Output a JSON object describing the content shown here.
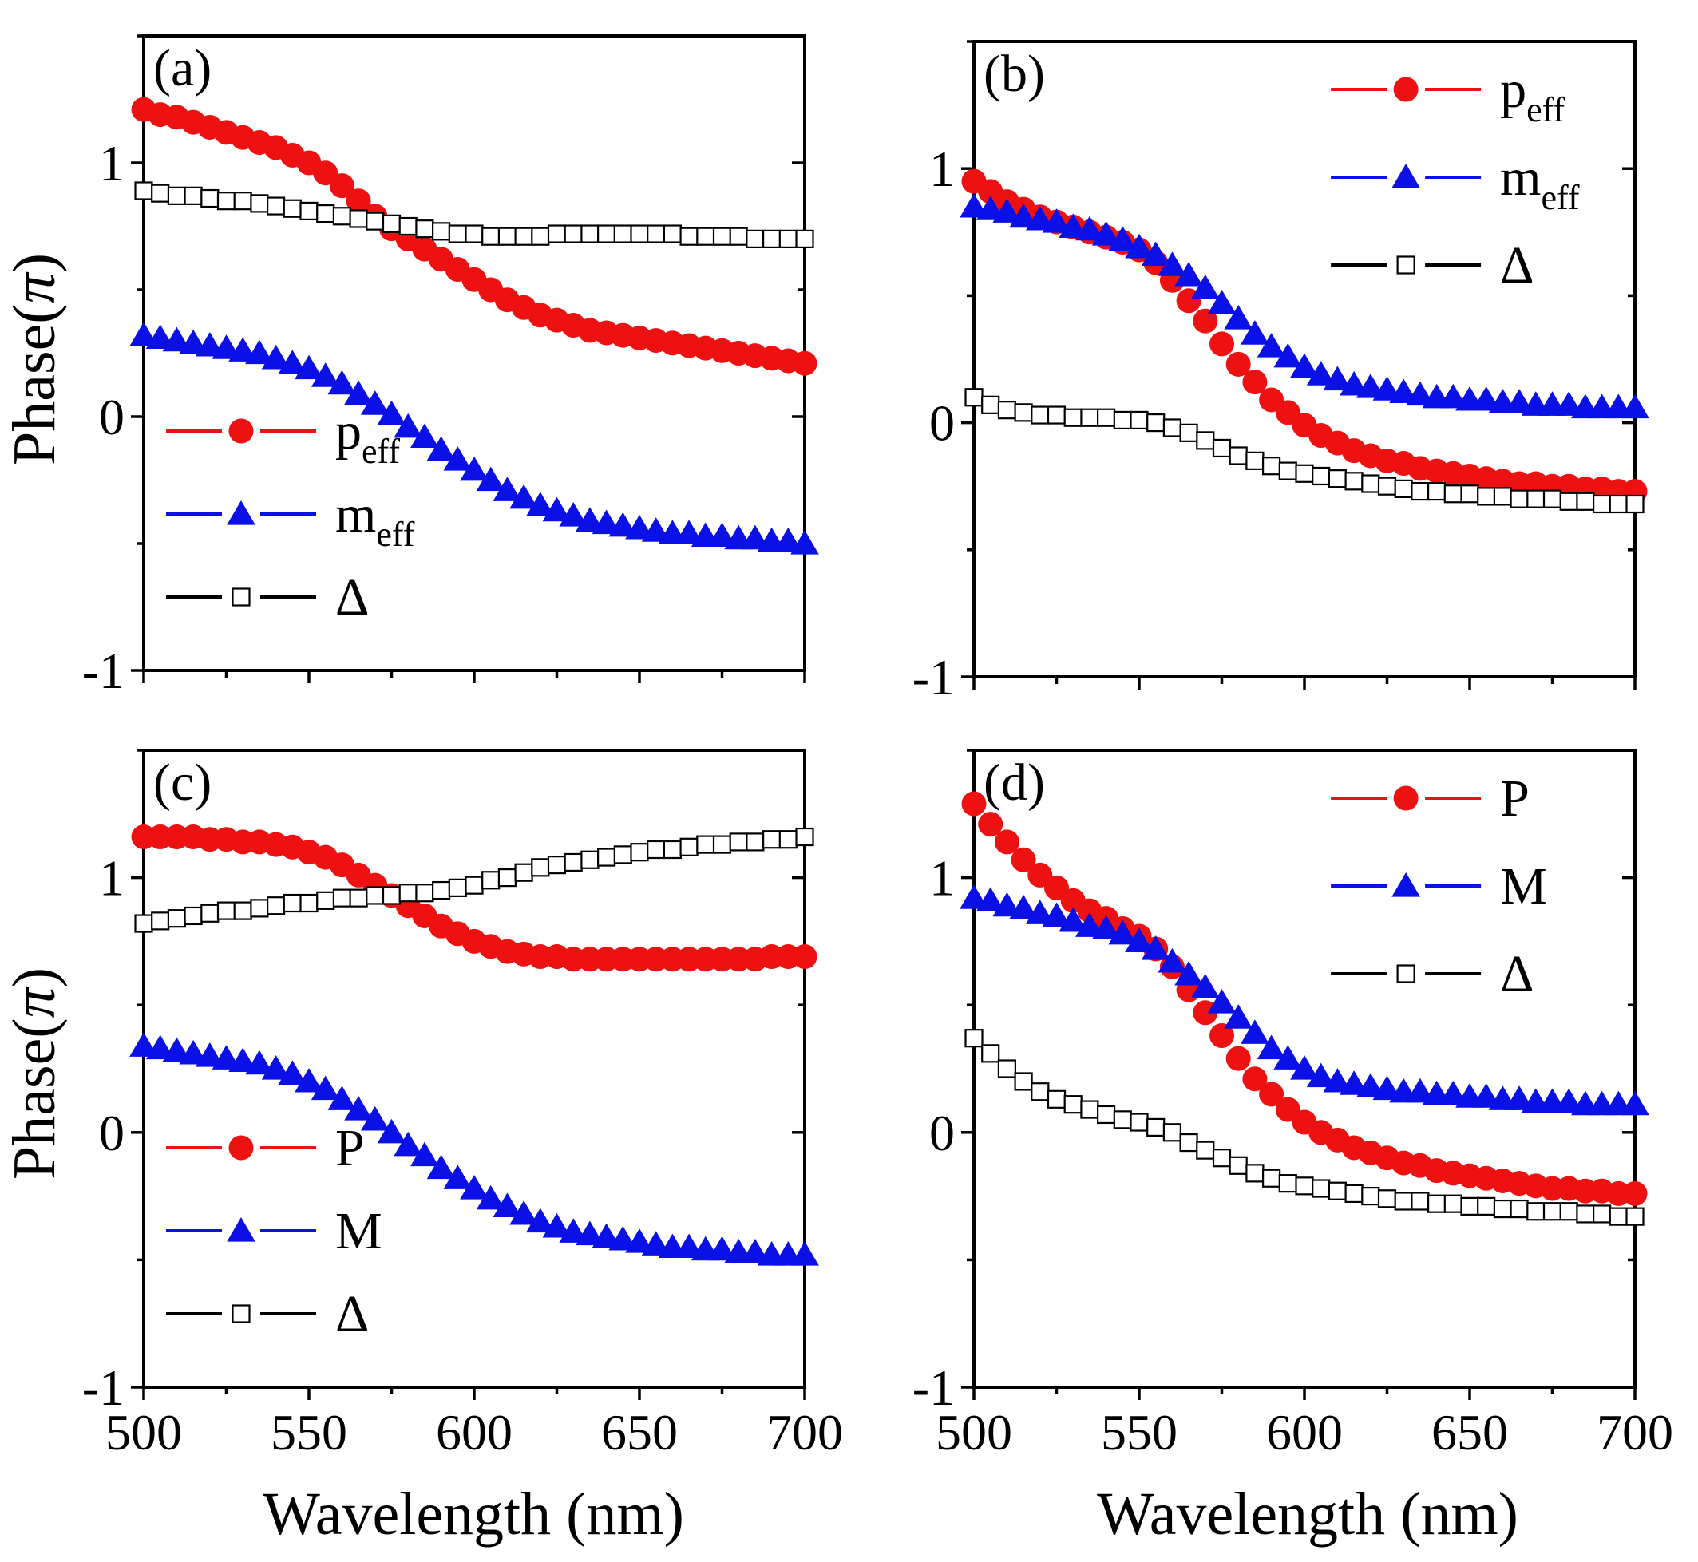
{
  "figure": {
    "x_axis_label": "Wavelength (nm)",
    "y_axis_label_main": "Phase(",
    "y_axis_label_symbol": "π",
    "y_axis_label_close": ")"
  },
  "colors": {
    "p": "#ee1111",
    "m": "#0a10e6",
    "delta": "#000000"
  },
  "chart_data": [
    {
      "type": "scatter",
      "panel_label": "(a)",
      "legend_position": "bottom-left",
      "xlabel": "Wavelength (nm)",
      "ylabel": "Phase(π)",
      "xlim": [
        500,
        700
      ],
      "ylim": [
        -1,
        1.5
      ],
      "xticks": [
        "500",
        "550",
        "600",
        "650",
        "700"
      ],
      "yticks": [
        "-1",
        "0",
        "1"
      ],
      "x": [
        500,
        505,
        510,
        515,
        520,
        525,
        530,
        535,
        540,
        545,
        550,
        555,
        560,
        565,
        570,
        575,
        580,
        585,
        590,
        595,
        600,
        605,
        610,
        615,
        620,
        625,
        630,
        635,
        640,
        645,
        650,
        655,
        660,
        665,
        670,
        675,
        680,
        685,
        690,
        695,
        700
      ],
      "series": [
        {
          "name": "p",
          "name_sub": "eff",
          "marker": "circle",
          "color_key": "p",
          "values": [
            1.21,
            1.19,
            1.18,
            1.16,
            1.14,
            1.12,
            1.1,
            1.08,
            1.06,
            1.03,
            1.0,
            0.96,
            0.91,
            0.85,
            0.79,
            0.74,
            0.7,
            0.66,
            0.62,
            0.58,
            0.54,
            0.5,
            0.46,
            0.43,
            0.4,
            0.38,
            0.36,
            0.34,
            0.33,
            0.32,
            0.31,
            0.3,
            0.29,
            0.28,
            0.27,
            0.26,
            0.25,
            0.24,
            0.23,
            0.22,
            0.21
          ]
        },
        {
          "name": "m",
          "name_sub": "eff",
          "marker": "triangle",
          "color_key": "m",
          "values": [
            0.32,
            0.31,
            0.3,
            0.29,
            0.28,
            0.27,
            0.26,
            0.25,
            0.23,
            0.21,
            0.19,
            0.16,
            0.13,
            0.09,
            0.05,
            0.01,
            -0.04,
            -0.08,
            -0.13,
            -0.17,
            -0.21,
            -0.25,
            -0.29,
            -0.32,
            -0.35,
            -0.37,
            -0.39,
            -0.41,
            -0.42,
            -0.43,
            -0.44,
            -0.45,
            -0.46,
            -0.46,
            -0.47,
            -0.47,
            -0.48,
            -0.48,
            -0.49,
            -0.49,
            -0.5
          ]
        },
        {
          "name": "Δ",
          "name_sub": "",
          "marker": "square",
          "color_key": "delta",
          "values": [
            0.89,
            0.88,
            0.87,
            0.87,
            0.86,
            0.85,
            0.85,
            0.84,
            0.83,
            0.82,
            0.81,
            0.8,
            0.79,
            0.78,
            0.77,
            0.76,
            0.75,
            0.74,
            0.73,
            0.72,
            0.72,
            0.71,
            0.71,
            0.71,
            0.71,
            0.72,
            0.72,
            0.72,
            0.72,
            0.72,
            0.72,
            0.72,
            0.72,
            0.71,
            0.71,
            0.71,
            0.71,
            0.7,
            0.7,
            0.7,
            0.7
          ]
        }
      ]
    },
    {
      "type": "scatter",
      "panel_label": "(b)",
      "legend_position": "top-right",
      "xlabel": "Wavelength (nm)",
      "ylabel": "Phase(π)",
      "xlim": [
        500,
        700
      ],
      "ylim": [
        -1,
        1.5
      ],
      "xticks": [
        "500",
        "550",
        "600",
        "650",
        "700"
      ],
      "yticks": [
        "-1",
        "0",
        "1"
      ],
      "x": [
        500,
        505,
        510,
        515,
        520,
        525,
        530,
        535,
        540,
        545,
        550,
        555,
        560,
        565,
        570,
        575,
        580,
        585,
        590,
        595,
        600,
        605,
        610,
        615,
        620,
        625,
        630,
        635,
        640,
        645,
        650,
        655,
        660,
        665,
        670,
        675,
        680,
        685,
        690,
        695,
        700
      ],
      "series": [
        {
          "name": "p",
          "name_sub": "eff",
          "marker": "circle",
          "color_key": "p",
          "values": [
            0.95,
            0.91,
            0.87,
            0.84,
            0.81,
            0.79,
            0.77,
            0.75,
            0.73,
            0.71,
            0.68,
            0.63,
            0.56,
            0.48,
            0.4,
            0.31,
            0.23,
            0.16,
            0.09,
            0.04,
            -0.01,
            -0.05,
            -0.08,
            -0.11,
            -0.13,
            -0.15,
            -0.16,
            -0.18,
            -0.19,
            -0.2,
            -0.21,
            -0.22,
            -0.23,
            -0.24,
            -0.24,
            -0.25,
            -0.25,
            -0.26,
            -0.26,
            -0.27,
            -0.27
          ]
        },
        {
          "name": "m",
          "name_sub": "eff",
          "marker": "triangle",
          "color_key": "m",
          "values": [
            0.85,
            0.84,
            0.83,
            0.81,
            0.8,
            0.79,
            0.77,
            0.76,
            0.74,
            0.72,
            0.69,
            0.66,
            0.62,
            0.58,
            0.53,
            0.47,
            0.41,
            0.35,
            0.3,
            0.26,
            0.22,
            0.19,
            0.17,
            0.15,
            0.14,
            0.13,
            0.12,
            0.11,
            0.1,
            0.1,
            0.09,
            0.09,
            0.08,
            0.08,
            0.07,
            0.07,
            0.07,
            0.06,
            0.06,
            0.06,
            0.06
          ]
        },
        {
          "name": "Δ",
          "name_sub": "",
          "marker": "square",
          "color_key": "delta",
          "values": [
            0.1,
            0.07,
            0.05,
            0.04,
            0.03,
            0.03,
            0.02,
            0.02,
            0.02,
            0.01,
            0.01,
            0.0,
            -0.02,
            -0.04,
            -0.07,
            -0.1,
            -0.13,
            -0.15,
            -0.17,
            -0.19,
            -0.2,
            -0.21,
            -0.22,
            -0.23,
            -0.24,
            -0.25,
            -0.26,
            -0.27,
            -0.27,
            -0.28,
            -0.28,
            -0.29,
            -0.29,
            -0.3,
            -0.3,
            -0.3,
            -0.31,
            -0.31,
            -0.32,
            -0.32,
            -0.32
          ]
        }
      ]
    },
    {
      "type": "scatter",
      "panel_label": "(c)",
      "legend_position": "bottom-left",
      "xlabel": "Wavelength (nm)",
      "ylabel": "Phase(π)",
      "xlim": [
        500,
        700
      ],
      "ylim": [
        -1,
        1.5
      ],
      "xticks": [
        "500",
        "550",
        "600",
        "650",
        "700"
      ],
      "yticks": [
        "-1",
        "0",
        "1"
      ],
      "x": [
        500,
        505,
        510,
        515,
        520,
        525,
        530,
        535,
        540,
        545,
        550,
        555,
        560,
        565,
        570,
        575,
        580,
        585,
        590,
        595,
        600,
        605,
        610,
        615,
        620,
        625,
        630,
        635,
        640,
        645,
        650,
        655,
        660,
        665,
        670,
        675,
        680,
        685,
        690,
        695,
        700
      ],
      "series": [
        {
          "name": "P",
          "name_sub": "",
          "marker": "circle",
          "color_key": "p",
          "values": [
            1.16,
            1.16,
            1.16,
            1.16,
            1.15,
            1.15,
            1.14,
            1.14,
            1.13,
            1.12,
            1.1,
            1.08,
            1.05,
            1.01,
            0.97,
            0.93,
            0.89,
            0.85,
            0.81,
            0.78,
            0.75,
            0.73,
            0.71,
            0.7,
            0.69,
            0.69,
            0.68,
            0.68,
            0.68,
            0.68,
            0.68,
            0.68,
            0.68,
            0.68,
            0.68,
            0.68,
            0.68,
            0.68,
            0.69,
            0.69,
            0.69
          ]
        },
        {
          "name": "M",
          "name_sub": "",
          "marker": "triangle",
          "color_key": "m",
          "values": [
            0.34,
            0.33,
            0.32,
            0.31,
            0.3,
            0.29,
            0.28,
            0.27,
            0.25,
            0.23,
            0.2,
            0.17,
            0.13,
            0.09,
            0.05,
            0.0,
            -0.05,
            -0.09,
            -0.14,
            -0.18,
            -0.22,
            -0.26,
            -0.29,
            -0.32,
            -0.35,
            -0.37,
            -0.39,
            -0.4,
            -0.41,
            -0.42,
            -0.43,
            -0.44,
            -0.45,
            -0.45,
            -0.46,
            -0.46,
            -0.47,
            -0.47,
            -0.48,
            -0.48,
            -0.48
          ]
        },
        {
          "name": "Δ",
          "name_sub": "",
          "marker": "square",
          "color_key": "delta",
          "values": [
            0.82,
            0.83,
            0.84,
            0.85,
            0.86,
            0.87,
            0.87,
            0.88,
            0.89,
            0.9,
            0.9,
            0.91,
            0.92,
            0.92,
            0.93,
            0.93,
            0.94,
            0.94,
            0.95,
            0.96,
            0.97,
            0.99,
            1.0,
            1.02,
            1.04,
            1.05,
            1.06,
            1.07,
            1.08,
            1.09,
            1.1,
            1.11,
            1.11,
            1.12,
            1.13,
            1.13,
            1.14,
            1.14,
            1.15,
            1.15,
            1.16
          ]
        }
      ]
    },
    {
      "type": "scatter",
      "panel_label": "(d)",
      "legend_position": "top-right",
      "xlabel": "Wavelength (nm)",
      "ylabel": "Phase(π)",
      "xlim": [
        500,
        700
      ],
      "ylim": [
        -1,
        1.5
      ],
      "xticks": [
        "500",
        "550",
        "600",
        "650",
        "700"
      ],
      "yticks": [
        "-1",
        "0",
        "1"
      ],
      "x": [
        500,
        505,
        510,
        515,
        520,
        525,
        530,
        535,
        540,
        545,
        550,
        555,
        560,
        565,
        570,
        575,
        580,
        585,
        590,
        595,
        600,
        605,
        610,
        615,
        620,
        625,
        630,
        635,
        640,
        645,
        650,
        655,
        660,
        665,
        670,
        675,
        680,
        685,
        690,
        695,
        700
      ],
      "series": [
        {
          "name": "P",
          "name_sub": "",
          "marker": "circle",
          "color_key": "p",
          "values": [
            1.29,
            1.21,
            1.14,
            1.07,
            1.01,
            0.96,
            0.91,
            0.87,
            0.84,
            0.8,
            0.77,
            0.72,
            0.65,
            0.56,
            0.47,
            0.38,
            0.29,
            0.21,
            0.15,
            0.09,
            0.04,
            0.0,
            -0.03,
            -0.06,
            -0.08,
            -0.1,
            -0.12,
            -0.13,
            -0.15,
            -0.16,
            -0.17,
            -0.18,
            -0.19,
            -0.2,
            -0.21,
            -0.22,
            -0.22,
            -0.23,
            -0.23,
            -0.24,
            -0.24
          ]
        },
        {
          "name": "M",
          "name_sub": "",
          "marker": "triangle",
          "color_key": "m",
          "values": [
            0.92,
            0.91,
            0.89,
            0.88,
            0.86,
            0.85,
            0.83,
            0.81,
            0.8,
            0.78,
            0.75,
            0.72,
            0.67,
            0.62,
            0.57,
            0.51,
            0.45,
            0.39,
            0.33,
            0.29,
            0.25,
            0.22,
            0.2,
            0.19,
            0.18,
            0.17,
            0.16,
            0.16,
            0.15,
            0.15,
            0.14,
            0.14,
            0.13,
            0.13,
            0.12,
            0.12,
            0.12,
            0.11,
            0.11,
            0.11,
            0.11
          ]
        },
        {
          "name": "Δ",
          "name_sub": "",
          "marker": "square",
          "color_key": "delta",
          "values": [
            0.37,
            0.31,
            0.25,
            0.2,
            0.16,
            0.13,
            0.11,
            0.09,
            0.07,
            0.05,
            0.04,
            0.02,
            0.0,
            -0.04,
            -0.07,
            -0.1,
            -0.13,
            -0.16,
            -0.18,
            -0.2,
            -0.21,
            -0.22,
            -0.23,
            -0.24,
            -0.25,
            -0.26,
            -0.27,
            -0.27,
            -0.28,
            -0.28,
            -0.29,
            -0.29,
            -0.3,
            -0.3,
            -0.31,
            -0.31,
            -0.31,
            -0.32,
            -0.32,
            -0.33,
            -0.33
          ]
        }
      ]
    }
  ]
}
